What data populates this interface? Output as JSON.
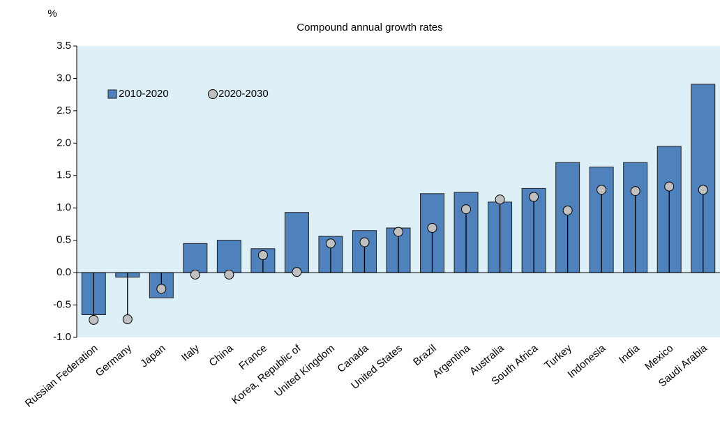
{
  "chart_data": {
    "type": "bar_dot",
    "title": "Compound annual growth rates",
    "y_unit": "%",
    "categories": [
      "Russian Federation",
      "Germany",
      "Japan",
      "Italy",
      "China",
      "France",
      "Korea, Republic of",
      "United Kingdom",
      "Canada",
      "United States",
      "Brazil",
      "Argentina",
      "Australia",
      "South Africa",
      "Turkey",
      "Indonesia",
      "India",
      "Mexico",
      "Saudi Arabia"
    ],
    "series": [
      {
        "name": "2010-2020",
        "color": "#4f81bd",
        "values": [
          -0.65,
          -0.07,
          -0.39,
          0.45,
          0.5,
          0.37,
          0.93,
          0.56,
          0.65,
          0.69,
          1.22,
          1.24,
          1.09,
          1.3,
          1.7,
          1.63,
          1.7,
          1.95,
          2.91
        ]
      },
      {
        "name": "2020-2030",
        "color": "#c0c0c0",
        "values": [
          -0.73,
          -0.72,
          -0.25,
          -0.03,
          -0.03,
          0.27,
          0.01,
          0.45,
          0.47,
          0.63,
          0.69,
          0.98,
          1.13,
          1.17,
          0.96,
          1.28,
          1.26,
          1.33,
          1.28
        ]
      }
    ],
    "ylim": [
      -1,
      3.5
    ],
    "yticks": [
      {
        "value": -1,
        "label": "-1.0"
      },
      -0.5,
      {
        "value": 0,
        "label": "0.0"
      },
      0.5,
      {
        "value": 1,
        "label": "1.0"
      },
      1.5,
      {
        "value": 2,
        "label": "2.0"
      },
      2.5,
      {
        "value": 3,
        "label": "3.0"
      },
      3.5
    ],
    "legend": "upper left",
    "background": "#ddf0f7"
  }
}
